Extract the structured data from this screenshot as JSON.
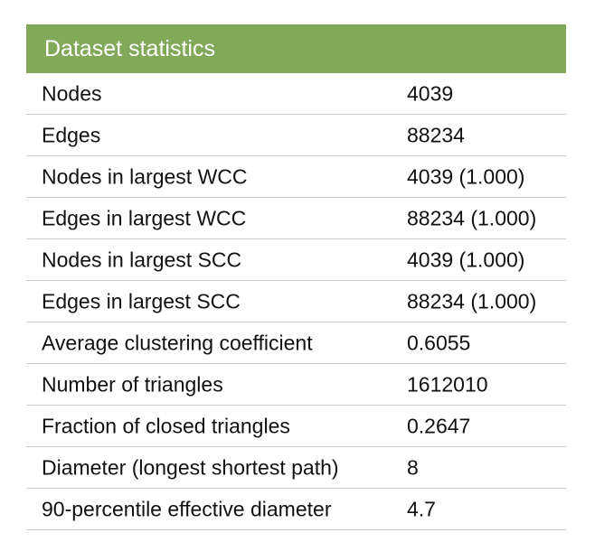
{
  "table": {
    "title": "Dataset statistics",
    "rows": [
      {
        "label": "Nodes",
        "value": "4039"
      },
      {
        "label": "Edges",
        "value": "88234"
      },
      {
        "label": "Nodes in largest WCC",
        "value": "4039 (1.000)"
      },
      {
        "label": "Edges in largest WCC",
        "value": "88234 (1.000)"
      },
      {
        "label": "Nodes in largest SCC",
        "value": "4039 (1.000)"
      },
      {
        "label": "Edges in largest SCC",
        "value": "88234 (1.000)"
      },
      {
        "label": "Average clustering coefficient",
        "value": "0.6055"
      },
      {
        "label": "Number of triangles",
        "value": "1612010"
      },
      {
        "label": "Fraction of closed triangles",
        "value": "0.2647"
      },
      {
        "label": "Diameter (longest shortest path)",
        "value": "8"
      },
      {
        "label": "90-percentile effective diameter",
        "value": "4.7"
      }
    ]
  },
  "colors": {
    "header_bg": "#82a85a",
    "header_text": "#ffffff",
    "row_border": "#cccccc",
    "text": "#111111"
  }
}
